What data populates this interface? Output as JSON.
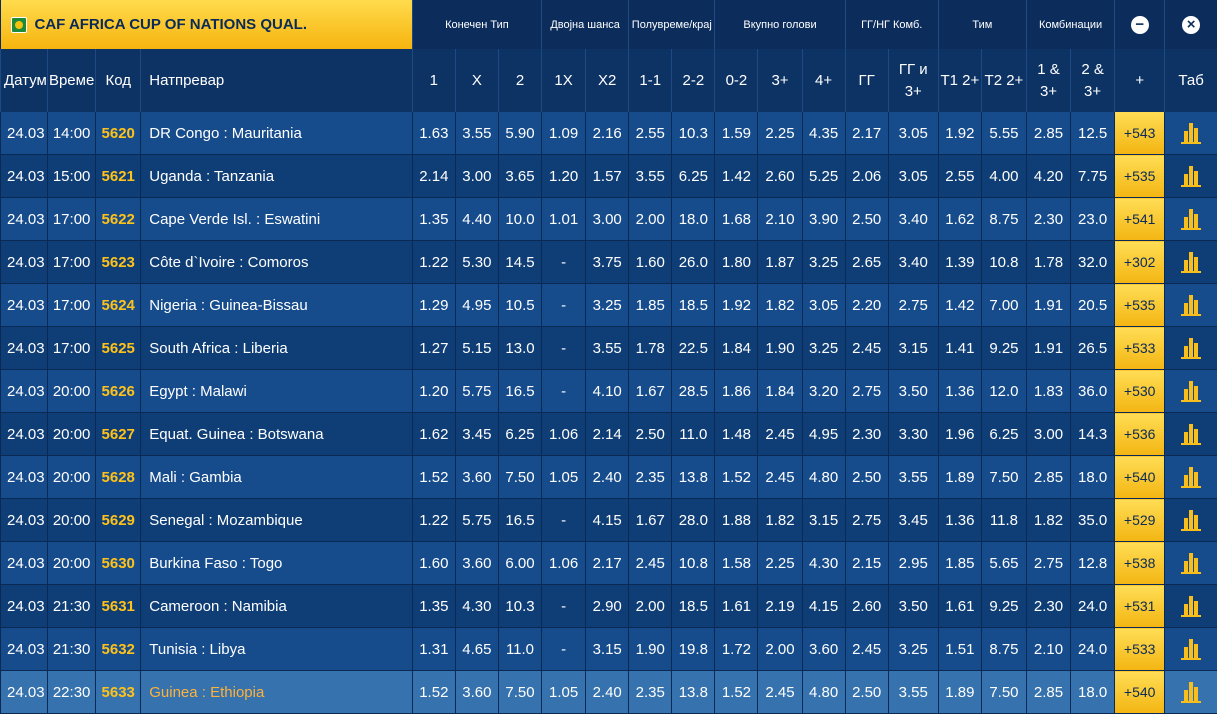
{
  "competition": "CAF AFRICA CUP OF NATIONS QUAL.",
  "groups": [
    "Конечен Тип",
    "Двојна шанса",
    "Полувреме/крај",
    "Вкупно голови",
    "ГГ/НГ Комб.",
    "Тим",
    "Комбинации"
  ],
  "controls": {
    "collapse": "−",
    "close": "×"
  },
  "columns": [
    "Датум",
    "Време",
    "Код",
    "Натпревар",
    "1",
    "X",
    "2",
    "1X",
    "X2",
    "1-1",
    "2-2",
    "0-2",
    "3+",
    "4+",
    "ГГ",
    "ГГ и 3+",
    "Т1 2+",
    "Т2 2+",
    "1 & 3+",
    "2 & 3+",
    "+",
    "Таб"
  ],
  "rows": [
    {
      "date": "24.03",
      "time": "14:00",
      "code": "5620",
      "match": "DR Congo : Mauritania",
      "odds": [
        "1.63",
        "3.55",
        "5.90",
        "1.09",
        "2.16",
        "2.55",
        "10.3",
        "1.59",
        "2.25",
        "4.35",
        "2.17",
        "3.05",
        "1.92",
        "5.55",
        "2.85",
        "12.5"
      ],
      "more": "+543"
    },
    {
      "date": "24.03",
      "time": "15:00",
      "code": "5621",
      "match": "Uganda : Tanzania",
      "odds": [
        "2.14",
        "3.00",
        "3.65",
        "1.20",
        "1.57",
        "3.55",
        "6.25",
        "1.42",
        "2.60",
        "5.25",
        "2.06",
        "3.05",
        "2.55",
        "4.00",
        "4.20",
        "7.75"
      ],
      "more": "+535"
    },
    {
      "date": "24.03",
      "time": "17:00",
      "code": "5622",
      "match": "Cape Verde Isl. : Eswatini",
      "odds": [
        "1.35",
        "4.40",
        "10.0",
        "1.01",
        "3.00",
        "2.00",
        "18.0",
        "1.68",
        "2.10",
        "3.90",
        "2.50",
        "3.40",
        "1.62",
        "8.75",
        "2.30",
        "23.0"
      ],
      "more": "+541"
    },
    {
      "date": "24.03",
      "time": "17:00",
      "code": "5623",
      "match": "Côte d`Ivoire : Comoros",
      "odds": [
        "1.22",
        "5.30",
        "14.5",
        "-",
        "3.75",
        "1.60",
        "26.0",
        "1.80",
        "1.87",
        "3.25",
        "2.65",
        "3.40",
        "1.39",
        "10.8",
        "1.78",
        "32.0"
      ],
      "more": "+302"
    },
    {
      "date": "24.03",
      "time": "17:00",
      "code": "5624",
      "match": "Nigeria : Guinea-Bissau",
      "odds": [
        "1.29",
        "4.95",
        "10.5",
        "-",
        "3.25",
        "1.85",
        "18.5",
        "1.92",
        "1.82",
        "3.05",
        "2.20",
        "2.75",
        "1.42",
        "7.00",
        "1.91",
        "20.5"
      ],
      "more": "+535"
    },
    {
      "date": "24.03",
      "time": "17:00",
      "code": "5625",
      "match": "South Africa : Liberia",
      "odds": [
        "1.27",
        "5.15",
        "13.0",
        "-",
        "3.55",
        "1.78",
        "22.5",
        "1.84",
        "1.90",
        "3.25",
        "2.45",
        "3.15",
        "1.41",
        "9.25",
        "1.91",
        "26.5"
      ],
      "more": "+533"
    },
    {
      "date": "24.03",
      "time": "20:00",
      "code": "5626",
      "match": "Egypt : Malawi",
      "odds": [
        "1.20",
        "5.75",
        "16.5",
        "-",
        "4.10",
        "1.67",
        "28.5",
        "1.86",
        "1.84",
        "3.20",
        "2.75",
        "3.50",
        "1.36",
        "12.0",
        "1.83",
        "36.0"
      ],
      "more": "+530"
    },
    {
      "date": "24.03",
      "time": "20:00",
      "code": "5627",
      "match": "Equat. Guinea : Botswana",
      "odds": [
        "1.62",
        "3.45",
        "6.25",
        "1.06",
        "2.14",
        "2.50",
        "11.0",
        "1.48",
        "2.45",
        "4.95",
        "2.30",
        "3.30",
        "1.96",
        "6.25",
        "3.00",
        "14.3"
      ],
      "more": "+536"
    },
    {
      "date": "24.03",
      "time": "20:00",
      "code": "5628",
      "match": "Mali : Gambia",
      "odds": [
        "1.52",
        "3.60",
        "7.50",
        "1.05",
        "2.40",
        "2.35",
        "13.8",
        "1.52",
        "2.45",
        "4.80",
        "2.50",
        "3.55",
        "1.89",
        "7.50",
        "2.85",
        "18.0"
      ],
      "more": "+540"
    },
    {
      "date": "24.03",
      "time": "20:00",
      "code": "5629",
      "match": "Senegal : Mozambique",
      "odds": [
        "1.22",
        "5.75",
        "16.5",
        "-",
        "4.15",
        "1.67",
        "28.0",
        "1.88",
        "1.82",
        "3.15",
        "2.75",
        "3.45",
        "1.36",
        "11.8",
        "1.82",
        "35.0"
      ],
      "more": "+529"
    },
    {
      "date": "24.03",
      "time": "20:00",
      "code": "5630",
      "match": "Burkina Faso : Togo",
      "odds": [
        "1.60",
        "3.60",
        "6.00",
        "1.06",
        "2.17",
        "2.45",
        "10.8",
        "1.58",
        "2.25",
        "4.30",
        "2.15",
        "2.95",
        "1.85",
        "5.65",
        "2.75",
        "12.8"
      ],
      "more": "+538"
    },
    {
      "date": "24.03",
      "time": "21:30",
      "code": "5631",
      "match": "Cameroon : Namibia",
      "odds": [
        "1.35",
        "4.30",
        "10.3",
        "-",
        "2.90",
        "2.00",
        "18.5",
        "1.61",
        "2.19",
        "4.15",
        "2.60",
        "3.50",
        "1.61",
        "9.25",
        "2.30",
        "24.0"
      ],
      "more": "+531"
    },
    {
      "date": "24.03",
      "time": "21:30",
      "code": "5632",
      "match": "Tunisia : Libya",
      "odds": [
        "1.31",
        "4.65",
        "11.0",
        "-",
        "3.15",
        "1.90",
        "19.8",
        "1.72",
        "2.00",
        "3.60",
        "2.45",
        "3.25",
        "1.51",
        "8.75",
        "2.10",
        "24.0"
      ],
      "more": "+533"
    },
    {
      "date": "24.03",
      "time": "22:30",
      "code": "5633",
      "match": "Guinea : Ethiopia",
      "odds": [
        "1.52",
        "3.60",
        "7.50",
        "1.05",
        "2.40",
        "2.35",
        "13.8",
        "1.52",
        "2.45",
        "4.80",
        "2.50",
        "3.55",
        "1.89",
        "7.50",
        "2.85",
        "18.0"
      ],
      "more": "+540",
      "selected": true
    }
  ]
}
